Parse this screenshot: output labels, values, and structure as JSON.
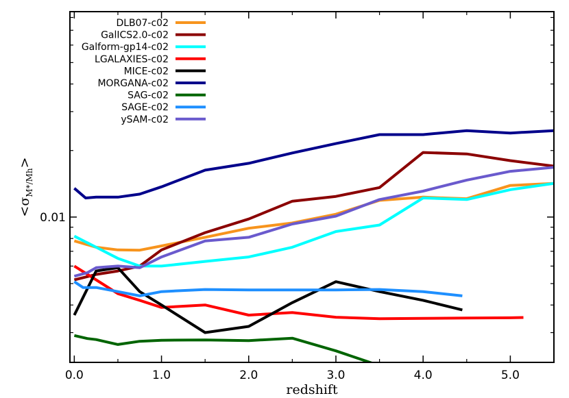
{
  "chart_data": {
    "type": "line",
    "title": "",
    "xlabel": "redshift",
    "ylabel": {
      "prefix": "<σ",
      "sub": "M*/Mh",
      "suffix": ">"
    },
    "xlim": [
      -0.05,
      5.5
    ],
    "ylim": [
      0.0022,
      0.085
    ],
    "ylog": true,
    "x_ticks": [
      0.0,
      1.0,
      2.0,
      3.0,
      4.0,
      5.0
    ],
    "x_tick_labels": [
      "0.0",
      "1.0",
      "2.0",
      "3.0",
      "4.0",
      "5.0"
    ],
    "y_ticks": [
      0.01
    ],
    "y_tick_labels": [
      "0.01"
    ],
    "legend_position": "top-left",
    "grid": false,
    "series": [
      {
        "name": "DLB07-c02",
        "color": "#f7941d",
        "x": [
          0.0,
          0.25,
          0.5,
          0.75,
          1.0,
          1.5,
          2.0,
          2.5,
          3.0,
          3.5,
          4.0,
          4.5,
          5.0,
          5.5
        ],
        "y": [
          0.0078,
          0.0073,
          0.0071,
          0.00708,
          0.0074,
          0.0081,
          0.0089,
          0.0094,
          0.0103,
          0.0119,
          0.0123,
          0.0121,
          0.0139,
          0.0142
        ]
      },
      {
        "name": "GalICS2.0-c02",
        "color": "#8b0000",
        "x": [
          0.0,
          0.25,
          0.5,
          0.75,
          1.0,
          1.5,
          2.0,
          2.5,
          3.0,
          3.5,
          4.0,
          4.5,
          5.0,
          5.5
        ],
        "y": [
          0.0052,
          0.0055,
          0.0057,
          0.006,
          0.0071,
          0.0085,
          0.0098,
          0.0118,
          0.0124,
          0.0136,
          0.0196,
          0.0193,
          0.018,
          0.017
        ]
      },
      {
        "name": "Galform-gp14-c02",
        "color": "#00ffff",
        "x": [
          0.0,
          0.25,
          0.5,
          0.75,
          1.0,
          1.5,
          2.0,
          2.5,
          3.0,
          3.5,
          4.0,
          4.5,
          5.0,
          5.5
        ],
        "y": [
          0.0082,
          0.0073,
          0.0065,
          0.006,
          0.006,
          0.0063,
          0.0066,
          0.0073,
          0.0086,
          0.0092,
          0.0122,
          0.012,
          0.0133,
          0.0142
        ]
      },
      {
        "name": "LGALAXIES-c02",
        "color": "#ff0000",
        "x": [
          0.0,
          0.25,
          0.5,
          0.75,
          1.0,
          1.5,
          2.0,
          2.5,
          3.0,
          3.5,
          4.0,
          4.5,
          5.0,
          5.15
        ],
        "y": [
          0.006,
          0.0052,
          0.0045,
          0.0042,
          0.0039,
          0.004,
          0.0036,
          0.0037,
          0.00352,
          0.00347,
          0.00348,
          0.00349,
          0.0035,
          0.00351
        ]
      },
      {
        "name": "MICE-c02",
        "color": "#000000",
        "x": [
          0.0,
          0.25,
          0.5,
          0.75,
          1.0,
          1.5,
          2.0,
          2.5,
          3.0,
          3.5,
          4.0,
          4.45
        ],
        "y": [
          0.0036,
          0.0057,
          0.0059,
          0.0046,
          0.004,
          0.003,
          0.0032,
          0.0041,
          0.0051,
          0.0046,
          0.0042,
          0.0038
        ]
      },
      {
        "name": "MORGANA-c02",
        "color": "#00008b",
        "x": [
          0.0,
          0.13,
          0.25,
          0.5,
          0.75,
          1.0,
          1.5,
          2.0,
          2.5,
          3.0,
          3.5,
          4.0,
          4.5,
          5.0,
          5.5
        ],
        "y": [
          0.0135,
          0.0122,
          0.0123,
          0.0123,
          0.0127,
          0.0137,
          0.0163,
          0.0175,
          0.0195,
          0.0215,
          0.0236,
          0.0236,
          0.0246,
          0.024,
          0.0246
        ]
      },
      {
        "name": "SAG-c02",
        "color": "#006400",
        "x": [
          0.0,
          0.15,
          0.25,
          0.5,
          0.75,
          1.0,
          1.5,
          2.0,
          2.5,
          3.0,
          3.42
        ],
        "y": [
          0.00291,
          0.00282,
          0.00279,
          0.00265,
          0.00274,
          0.00277,
          0.00278,
          0.00276,
          0.00283,
          0.00248,
          0.00218
        ]
      },
      {
        "name": "SAGE-c02",
        "color": "#1e8fff",
        "x": [
          0.0,
          0.1,
          0.25,
          0.5,
          0.75,
          1.0,
          1.5,
          2.0,
          2.5,
          3.0,
          3.5,
          4.0,
          4.45
        ],
        "y": [
          0.0051,
          0.0048,
          0.0048,
          0.0046,
          0.0044,
          0.0046,
          0.0047,
          0.00468,
          0.00468,
          0.00468,
          0.0047,
          0.0046,
          0.0044
        ]
      },
      {
        "name": "ySAM-c02",
        "color": "#6a5acd",
        "x": [
          0.0,
          0.15,
          0.25,
          0.5,
          0.75,
          1.0,
          1.5,
          2.0,
          2.5,
          3.0,
          3.5,
          4.0,
          4.5,
          5.0,
          5.5
        ],
        "y": [
          0.0054,
          0.0056,
          0.0059,
          0.006,
          0.0059,
          0.0066,
          0.0078,
          0.0081,
          0.0093,
          0.0101,
          0.012,
          0.0131,
          0.0147,
          0.0161,
          0.0168
        ]
      }
    ]
  }
}
